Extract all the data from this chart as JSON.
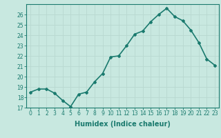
{
  "x": [
    0,
    1,
    2,
    3,
    4,
    5,
    6,
    7,
    8,
    9,
    10,
    11,
    12,
    13,
    14,
    15,
    16,
    17,
    18,
    19,
    20,
    21,
    22,
    23
  ],
  "y": [
    18.5,
    18.8,
    18.8,
    18.4,
    17.7,
    17.1,
    18.3,
    18.5,
    19.5,
    20.3,
    21.9,
    22.0,
    23.0,
    24.1,
    24.4,
    25.3,
    26.0,
    26.6,
    25.8,
    25.4,
    24.5,
    23.3,
    21.7,
    21.1
  ],
  "line_color": "#1a7a6e",
  "marker": "D",
  "marker_size": 2,
  "bg_color": "#c8e8e0",
  "grid_color": "#b8d8d0",
  "axis_color": "#1a7a6e",
  "xlabel": "Humidex (Indice chaleur)",
  "xlim": [
    -0.5,
    23.5
  ],
  "ylim": [
    17,
    27
  ],
  "yticks": [
    17,
    18,
    19,
    20,
    21,
    22,
    23,
    24,
    25,
    26
  ],
  "xticks": [
    0,
    1,
    2,
    3,
    4,
    5,
    6,
    7,
    8,
    9,
    10,
    11,
    12,
    13,
    14,
    15,
    16,
    17,
    18,
    19,
    20,
    21,
    22,
    23
  ],
  "tick_fontsize": 5.5,
  "label_fontsize": 7.0,
  "line_width": 1.2
}
